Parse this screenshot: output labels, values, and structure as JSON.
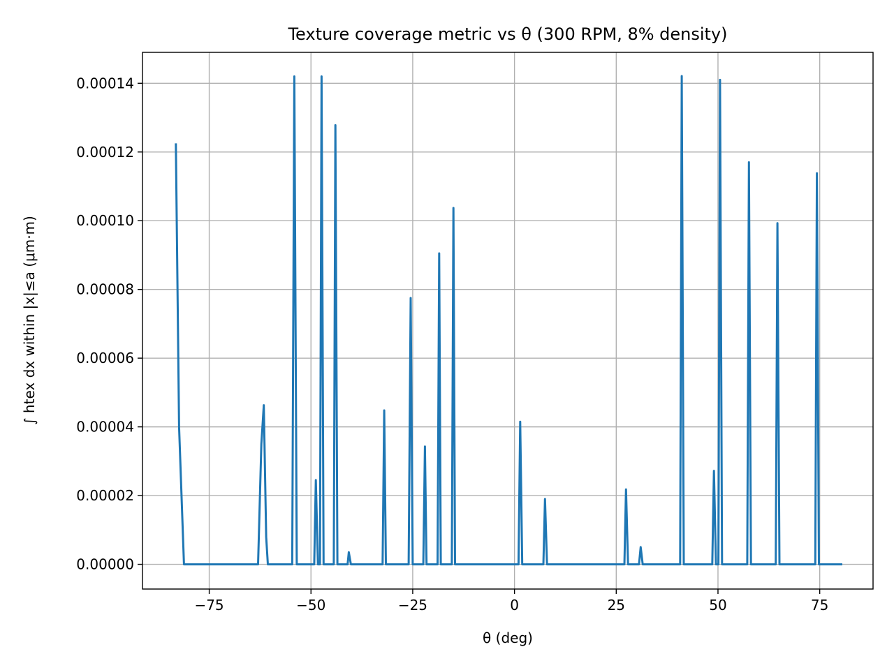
{
  "chart_data": {
    "type": "line",
    "title": "Texture coverage metric vs θ (300 RPM, 8% density)",
    "xlabel": "θ (deg)",
    "ylabel": "∫ htex dx within |x|≤a (μm·m)",
    "xlim": [
      -91.4,
      88.1
    ],
    "ylim": [
      -7.2e-06,
      0.000149
    ],
    "grid": true,
    "x_ticks": [
      -75,
      -50,
      -25,
      0,
      25,
      50,
      75
    ],
    "x_tick_labels": [
      "−75",
      "−50",
      "−25",
      "0",
      "25",
      "50",
      "75"
    ],
    "y_ticks": [
      0,
      2e-05,
      4e-05,
      6e-05,
      8e-05,
      0.0001,
      0.00012,
      0.00014
    ],
    "y_tick_labels": [
      "0.00000",
      "0.00002",
      "0.00004",
      "0.00006",
      "0.00008",
      "0.00010",
      "0.00012",
      "0.00014"
    ],
    "series": [
      {
        "color": "#1f77b4",
        "points": [
          [
            -83.2,
            0.0001222
          ],
          [
            -82.4,
            4e-05
          ],
          [
            -81.2,
            0
          ],
          [
            -63.0,
            0
          ],
          [
            -62.2,
            3.5e-05
          ],
          [
            -61.6,
            4.63e-05
          ],
          [
            -61.0,
            8e-06
          ],
          [
            -60.6,
            0
          ],
          [
            -54.6,
            0
          ],
          [
            -54.1,
            0.000142
          ],
          [
            -53.5,
            0
          ],
          [
            -49.2,
            0
          ],
          [
            -48.8,
            2.45e-05
          ],
          [
            -48.3,
            0
          ],
          [
            -47.8,
            0
          ],
          [
            -47.4,
            0.000142
          ],
          [
            -46.9,
            0
          ],
          [
            -44.4,
            0
          ],
          [
            -44.0,
            0.0001278
          ],
          [
            -43.5,
            0
          ],
          [
            -41.0,
            0
          ],
          [
            -40.7,
            3.5e-06
          ],
          [
            -40.2,
            0
          ],
          [
            -32.4,
            0
          ],
          [
            -32.0,
            4.48e-05
          ],
          [
            -31.6,
            0
          ],
          [
            -26.0,
            0
          ],
          [
            -25.5,
            7.75e-05
          ],
          [
            -25.0,
            0
          ],
          [
            -22.4,
            0
          ],
          [
            -22.0,
            3.43e-05
          ],
          [
            -21.6,
            0
          ],
          [
            -18.9,
            0
          ],
          [
            -18.5,
            9.05e-05
          ],
          [
            -18.1,
            0
          ],
          [
            -15.4,
            0
          ],
          [
            -15.0,
            0.0001037
          ],
          [
            -14.6,
            0
          ],
          [
            1.0,
            0
          ],
          [
            1.4,
            4.15e-05
          ],
          [
            1.9,
            0
          ],
          [
            7.1,
            0
          ],
          [
            7.5,
            1.9e-05
          ],
          [
            8.0,
            0
          ],
          [
            27.0,
            0
          ],
          [
            27.4,
            2.18e-05
          ],
          [
            27.9,
            0
          ],
          [
            30.6,
            0
          ],
          [
            31.0,
            5e-06
          ],
          [
            31.5,
            0
          ],
          [
            40.7,
            0
          ],
          [
            41.1,
            0.0001421
          ],
          [
            41.6,
            0
          ],
          [
            48.6,
            0
          ],
          [
            49.0,
            2.72e-05
          ],
          [
            49.5,
            0
          ],
          [
            50.1,
            0
          ],
          [
            50.5,
            0.000141
          ],
          [
            51.0,
            0
          ],
          [
            57.2,
            0
          ],
          [
            57.6,
            0.000117
          ],
          [
            58.1,
            0
          ],
          [
            64.2,
            0
          ],
          [
            64.6,
            9.93e-05
          ],
          [
            65.1,
            0
          ],
          [
            73.9,
            0
          ],
          [
            74.3,
            0.0001138
          ],
          [
            74.8,
            0
          ],
          [
            80.3,
            0
          ]
        ]
      }
    ]
  }
}
